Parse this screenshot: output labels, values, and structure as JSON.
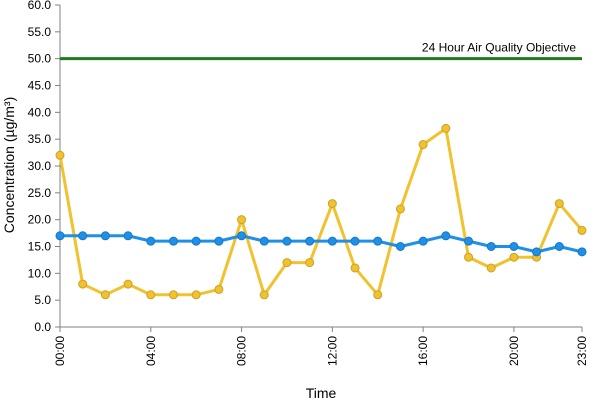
{
  "chart_data": {
    "type": "line",
    "xlabel": "Time",
    "ylabel": "Concentration (µg/m³)",
    "ylim": [
      0,
      60
    ],
    "y_ticks": [
      "0.0",
      "5.0",
      "10.0",
      "15.0",
      "20.0",
      "25.0",
      "30.0",
      "35.0",
      "40.0",
      "45.0",
      "50.0",
      "55.0",
      "60.0"
    ],
    "x": [
      "00:00",
      "01:00",
      "02:00",
      "03:00",
      "04:00",
      "05:00",
      "06:00",
      "07:00",
      "08:00",
      "09:00",
      "10:00",
      "11:00",
      "12:00",
      "13:00",
      "14:00",
      "15:00",
      "16:00",
      "17:00",
      "18:00",
      "19:00",
      "20:00",
      "21:00",
      "22:00",
      "23:00"
    ],
    "x_tick_labels": [
      "00:00",
      "04:00",
      "08:00",
      "12:00",
      "16:00",
      "20:00",
      "23:00"
    ],
    "grid": false,
    "legend": "none",
    "series": [
      {
        "color": "#F2C12E",
        "edge_color": "#C9A227",
        "values": [
          32,
          8,
          6,
          8,
          6,
          6,
          6,
          7,
          20,
          6,
          12,
          12,
          23,
          11,
          6,
          22,
          34,
          37,
          13,
          11,
          13,
          13,
          23,
          18
        ]
      },
      {
        "color": "#1E90E8",
        "edge_color": "#1877C2",
        "values": [
          17,
          17,
          17,
          17,
          16,
          16,
          16,
          16,
          17,
          16,
          16,
          16,
          16,
          16,
          16,
          15,
          16,
          17,
          16,
          15,
          15,
          14,
          15,
          14
        ]
      }
    ],
    "reference_line": {
      "value": 50,
      "label": "24 Hour Air Quality Objective",
      "color": "#1F7A1F"
    }
  }
}
